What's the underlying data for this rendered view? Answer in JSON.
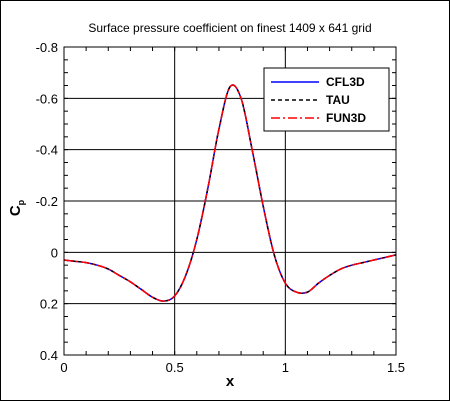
{
  "chart_data": {
    "type": "line",
    "title": "Surface pressure coefficient on finest 1409 x 641 grid",
    "xlabel": "x",
    "ylabel": "C",
    "ylabel_sub": "p",
    "xlim": [
      0,
      1.5
    ],
    "ylim": [
      0.4,
      -0.8
    ],
    "y_inverted": true,
    "x_ticks": [
      0,
      0.5,
      1,
      1.5
    ],
    "x_tick_labels": [
      "0",
      "0.5",
      "1",
      "1.5"
    ],
    "y_ticks": [
      -0.8,
      -0.6,
      -0.4,
      -0.2,
      0,
      0.2,
      0.4
    ],
    "y_tick_labels": [
      "-0.8",
      "-0.6",
      "-0.4",
      "-0.2",
      "0",
      "0.2",
      "0.4"
    ],
    "grid": true,
    "legend_position": "top-right",
    "x": [
      0,
      0.05,
      0.1,
      0.15,
      0.2,
      0.25,
      0.3,
      0.35,
      0.4,
      0.45,
      0.5,
      0.55,
      0.6,
      0.65,
      0.7,
      0.75,
      0.8,
      0.85,
      0.9,
      0.95,
      1.0,
      1.05,
      1.1,
      1.15,
      1.2,
      1.25,
      1.3,
      1.35,
      1.4,
      1.45,
      1.5
    ],
    "series": [
      {
        "name": "CFL3D",
        "color": "#0000ff",
        "dash": "solid",
        "values": [
          0.03,
          0.035,
          0.04,
          0.05,
          0.065,
          0.09,
          0.115,
          0.145,
          0.175,
          0.19,
          0.17,
          0.09,
          -0.05,
          -0.25,
          -0.48,
          -0.645,
          -0.6,
          -0.4,
          -0.18,
          0.01,
          0.12,
          0.155,
          0.155,
          0.12,
          0.09,
          0.065,
          0.05,
          0.04,
          0.03,
          0.02,
          0.01
        ]
      },
      {
        "name": "TAU",
        "color": "#000000",
        "dash": "dashed",
        "values": [
          0.03,
          0.035,
          0.04,
          0.05,
          0.065,
          0.09,
          0.115,
          0.145,
          0.175,
          0.19,
          0.17,
          0.09,
          -0.05,
          -0.25,
          -0.48,
          -0.645,
          -0.6,
          -0.4,
          -0.18,
          0.01,
          0.12,
          0.155,
          0.155,
          0.12,
          0.09,
          0.065,
          0.05,
          0.04,
          0.03,
          0.02,
          0.01
        ]
      },
      {
        "name": "FUN3D",
        "color": "#ff0000",
        "dash": "dashdot",
        "values": [
          0.03,
          0.035,
          0.04,
          0.05,
          0.065,
          0.09,
          0.115,
          0.145,
          0.175,
          0.19,
          0.17,
          0.09,
          -0.05,
          -0.25,
          -0.48,
          -0.645,
          -0.6,
          -0.4,
          -0.18,
          0.01,
          0.12,
          0.155,
          0.155,
          0.12,
          0.09,
          0.065,
          0.05,
          0.04,
          0.03,
          0.02,
          0.01
        ]
      }
    ]
  }
}
